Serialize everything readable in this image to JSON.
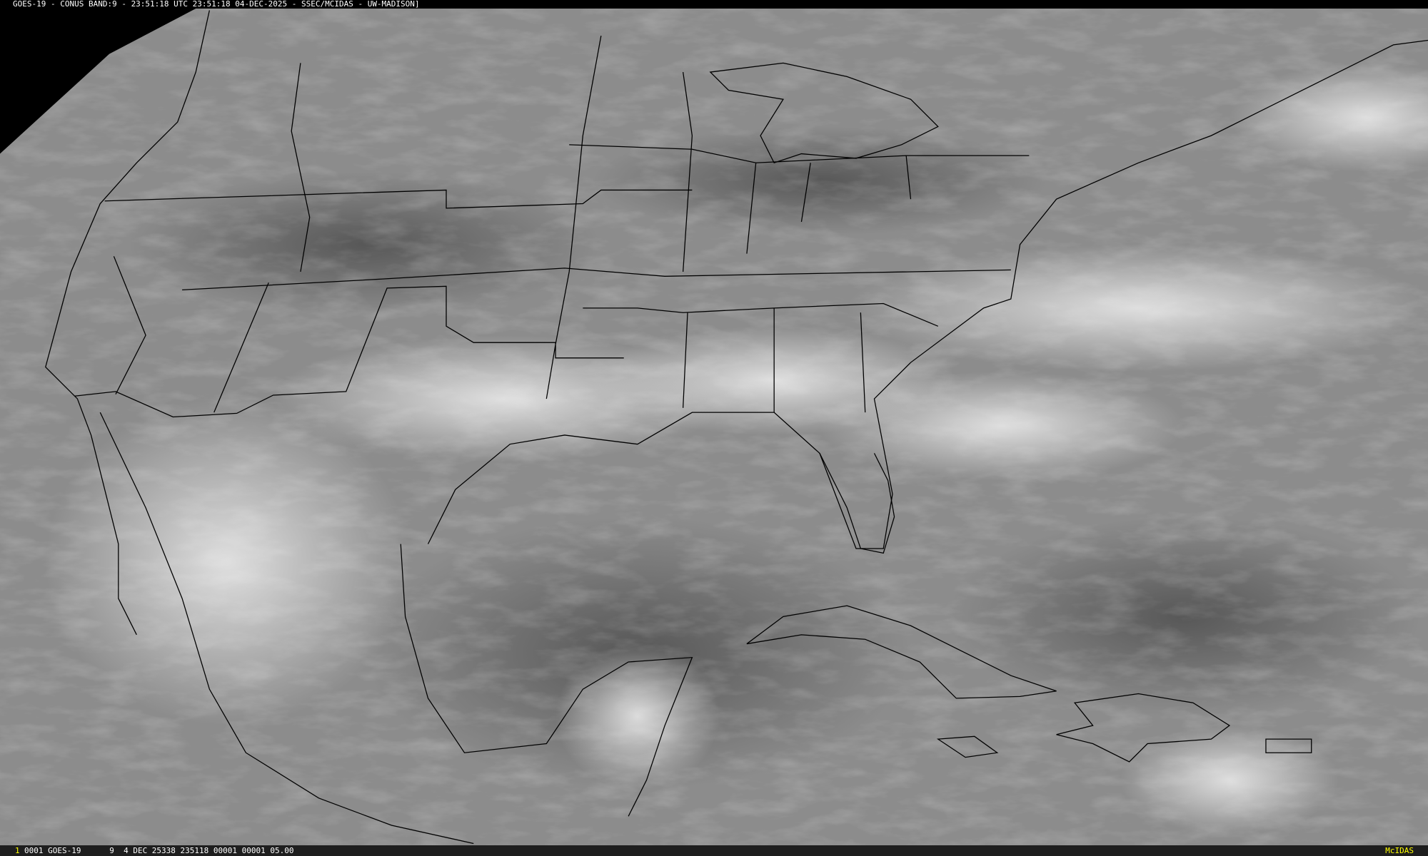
{
  "header": {
    "title": "GOES-19 - CONUS BAND:9 - 23:51:18 UTC 23:51:18 04-DEC-2025 - SSEC/MCIDAS - UW-MADISON]"
  },
  "footer": {
    "frame_number": "1",
    "info": "0001 GOES-19      9  4 DEC 25338 235118 00001 00001 05.00",
    "brand": "McIDAS"
  },
  "colors": {
    "label_yellow": "#ffff00",
    "background_space": "#000000",
    "outline": "#000000"
  }
}
